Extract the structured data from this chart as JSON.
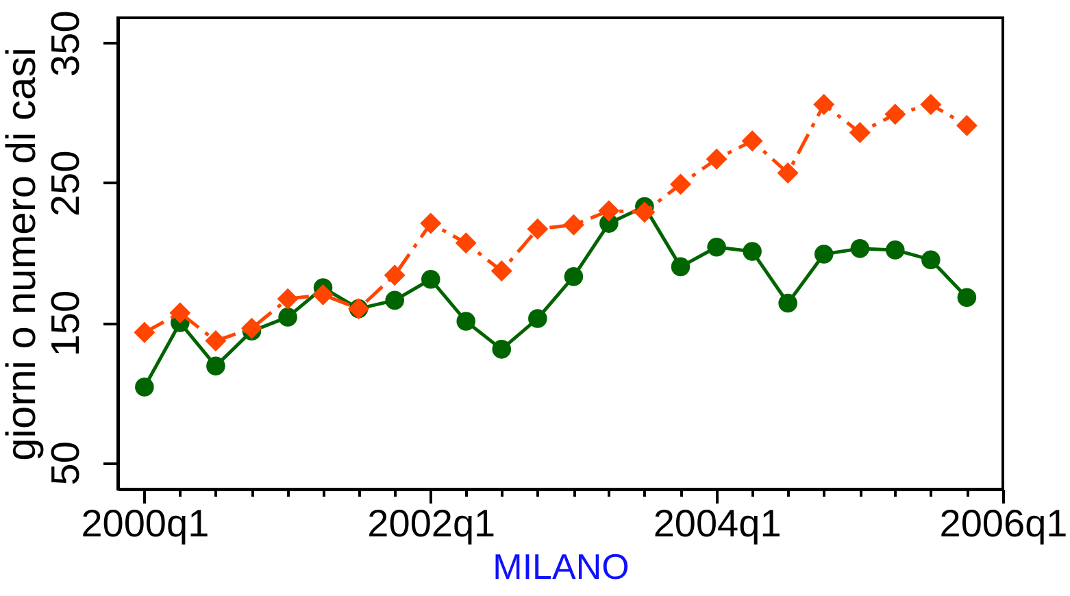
{
  "chart_data": {
    "type": "line",
    "xlabel": "MILANO",
    "ylabel": "giorni o numero di casi",
    "x": [
      "2000-01",
      "2000-04",
      "2000-07",
      "2000-10",
      "2001-01",
      "2001-04",
      "2001-07",
      "2001-10",
      "2002-01",
      "2002-04",
      "2002-07",
      "2002-10",
      "2003-01",
      "2003-04",
      "2003-07",
      "2003-10",
      "2004-01",
      "2004-04",
      "2004-07",
      "2004-10",
      "2005-01",
      "2005-04",
      "2005-07",
      "2005-10"
    ],
    "series": [
      {
        "color": "#006400",
        "marker": "circle",
        "line_style": "solid",
        "values": [
          104,
          150,
          119,
          144,
          154,
          175,
          160,
          166,
          181,
          151,
          131,
          153,
          183,
          221,
          233,
          190,
          204,
          201,
          164,
          199,
          203,
          202,
          195,
          168
        ]
      },
      {
        "color": "#ff4500",
        "marker": "diamond",
        "line_style": "dashed",
        "values": [
          143,
          157,
          137,
          146,
          167,
          170,
          160,
          184,
          221,
          207,
          187,
          217,
          220,
          230,
          229,
          249,
          267,
          280,
          257,
          306,
          286,
          299,
          306,
          291
        ]
      }
    ],
    "xlim": [
      "1999-10-25",
      "2006-01-01"
    ],
    "ylim": [
      31,
      368
    ],
    "xticks": [
      {
        "value": "2000-01",
        "label": "2000q1"
      },
      {
        "value": "2000-04",
        "label": null
      },
      {
        "value": "2000-07",
        "label": null
      },
      {
        "value": "2000-10",
        "label": null
      },
      {
        "value": "2001-01",
        "label": null
      },
      {
        "value": "2001-04",
        "label": null
      },
      {
        "value": "2001-07",
        "label": null
      },
      {
        "value": "2001-10",
        "label": null
      },
      {
        "value": "2002-01",
        "label": "2002q1"
      },
      {
        "value": "2002-04",
        "label": null
      },
      {
        "value": "2002-07",
        "label": null
      },
      {
        "value": "2002-10",
        "label": null
      },
      {
        "value": "2003-01",
        "label": null
      },
      {
        "value": "2003-04",
        "label": null
      },
      {
        "value": "2003-07",
        "label": null
      },
      {
        "value": "2003-10",
        "label": null
      },
      {
        "value": "2004-01",
        "label": "2004q1"
      },
      {
        "value": "2004-04",
        "label": null
      },
      {
        "value": "2004-07",
        "label": null
      },
      {
        "value": "2004-10",
        "label": null
      },
      {
        "value": "2005-01",
        "label": null
      },
      {
        "value": "2005-04",
        "label": null
      },
      {
        "value": "2005-07",
        "label": null
      },
      {
        "value": "2005-10",
        "label": null
      },
      {
        "value": "2006-01",
        "label": "2006q1"
      }
    ],
    "yticks": [
      50,
      150,
      250,
      350
    ]
  }
}
